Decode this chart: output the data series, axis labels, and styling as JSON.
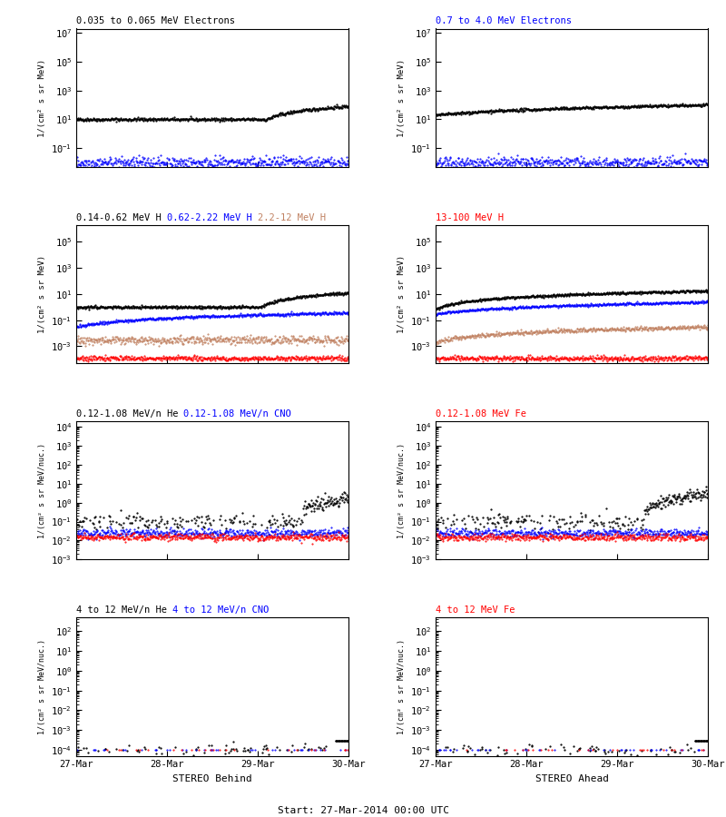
{
  "title_center": "Start: 27-Mar-2014 00:00 UTC",
  "xlabel_left": "STEREO Behind",
  "xlabel_right": "STEREO Ahead",
  "xtick_labels": [
    "27-Mar",
    "28-Mar",
    "29-Mar",
    "30-Mar"
  ],
  "ylabels_electrons": "1/(cm² s sr MeV)",
  "ylabels_protons": "1/(cm² s sr MeV)",
  "ylabels_heavy": "1/(cm² s sr MeV/nuc.)",
  "ylims_electrons": [
    0.005,
    20000000.0
  ],
  "ylims_protons": [
    5e-05,
    2000000.0
  ],
  "ylims_heavy_lo": [
    0.001,
    20000.0
  ],
  "ylims_heavy_hi": [
    5e-05,
    500.0
  ],
  "background_color": "#ffffff",
  "n_points": 500,
  "seed": 42,
  "row0_titles": [
    {
      "text": "0.035 to 0.065 MeV Electrons",
      "color": "black"
    },
    {
      "text": "0.7 to 4.0 MeV Electrons",
      "color": "blue"
    }
  ],
  "row1_titles": [
    {
      "text": "0.14-0.62 MeV H",
      "color": "black"
    },
    {
      "text": "0.62-2.22 MeV H",
      "color": "blue"
    },
    {
      "text": "2.2-12 MeV H",
      "color": "#c08060"
    },
    {
      "text": "13-100 MeV H",
      "color": "red"
    }
  ],
  "row2_titles": [
    {
      "text": "0.12-1.08 MeV/n He",
      "color": "black"
    },
    {
      "text": "0.12-1.08 MeV/n CNO",
      "color": "blue"
    },
    {
      "text": "0.12-1.08 MeV Fe",
      "color": "red"
    }
  ],
  "row3_titles": [
    {
      "text": "4 to 12 MeV/n He",
      "color": "black"
    },
    {
      "text": "4 to 12 MeV/n CNO",
      "color": "blue"
    },
    {
      "text": "4 to 12 MeV Fe",
      "color": "red"
    }
  ]
}
